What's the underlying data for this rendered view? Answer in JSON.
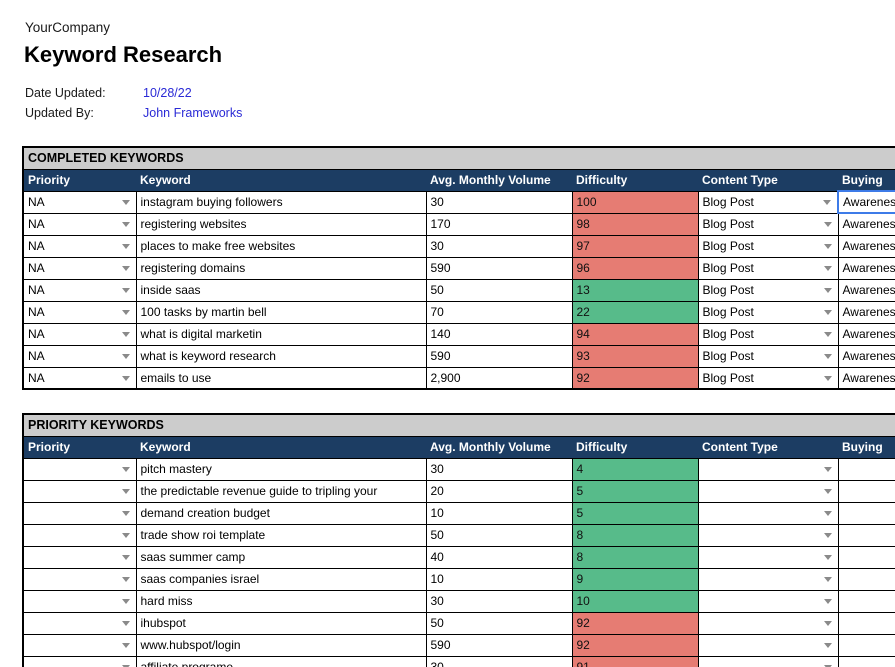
{
  "header": {
    "company": "YourCompany",
    "title": "Keyword Research",
    "date_updated_label": "Date Updated:",
    "date_updated_value": "10/28/22",
    "updated_by_label": "Updated By:",
    "updated_by_value": "John Frameworks"
  },
  "colors": {
    "header_navy": "#1c3d63",
    "section_gray": "#cccccc",
    "difficulty_red": "#e67c73",
    "difficulty_green": "#57bb8a",
    "link_blue": "#2a2ad6",
    "selection_blue": "#3d7be8"
  },
  "tables": [
    {
      "title": "COMPLETED KEYWORDS",
      "columns": [
        "Priority",
        "Keyword",
        "Avg. Monthly Volume",
        "Difficulty",
        "Content Type",
        "Buying"
      ],
      "rows": [
        {
          "priority": "NA",
          "keyword": "instagram buying followers",
          "volume": "30",
          "difficulty": "100",
          "difficulty_color": "red",
          "content_type": "Blog Post",
          "buying": "Awareness",
          "selected": true
        },
        {
          "priority": "NA",
          "keyword": "registering websites",
          "volume": "170",
          "difficulty": "98",
          "difficulty_color": "red",
          "content_type": "Blog Post",
          "buying": "Awareness"
        },
        {
          "priority": "NA",
          "keyword": "places to make free websites",
          "volume": "30",
          "difficulty": "97",
          "difficulty_color": "red",
          "content_type": "Blog Post",
          "buying": "Awareness"
        },
        {
          "priority": "NA",
          "keyword": "registering domains",
          "volume": "590",
          "difficulty": "96",
          "difficulty_color": "red",
          "content_type": "Blog Post",
          "buying": "Awareness"
        },
        {
          "priority": "NA",
          "keyword": "inside saas",
          "volume": "50",
          "difficulty": "13",
          "difficulty_color": "green",
          "content_type": "Blog Post",
          "buying": "Awareness"
        },
        {
          "priority": "NA",
          "keyword": "100 tasks by martin bell",
          "volume": "70",
          "difficulty": "22",
          "difficulty_color": "green",
          "content_type": "Blog Post",
          "buying": "Awareness"
        },
        {
          "priority": "NA",
          "keyword": "what is digital marketin",
          "volume": "140",
          "difficulty": "94",
          "difficulty_color": "red",
          "content_type": "Blog Post",
          "buying": "Awareness"
        },
        {
          "priority": "NA",
          "keyword": "what is keyword research",
          "volume": "590",
          "difficulty": "93",
          "difficulty_color": "red",
          "content_type": "Blog Post",
          "buying": "Awareness"
        },
        {
          "priority": "NA",
          "keyword": "emails to use",
          "volume": "2,900",
          "difficulty": "92",
          "difficulty_color": "red",
          "content_type": "Blog Post",
          "buying": "Awareness"
        }
      ]
    },
    {
      "title": "PRIORITY KEYWORDS",
      "columns": [
        "Priority",
        "Keyword",
        "Avg. Monthly Volume",
        "Difficulty",
        "Content Type",
        "Buying"
      ],
      "rows": [
        {
          "priority": "",
          "keyword": "pitch mastery",
          "volume": "30",
          "difficulty": "4",
          "difficulty_color": "green",
          "content_type": "",
          "buying": ""
        },
        {
          "priority": "",
          "keyword": "the predictable revenue guide to tripling your",
          "volume": "20",
          "difficulty": "5",
          "difficulty_color": "green",
          "content_type": "",
          "buying": ""
        },
        {
          "priority": "",
          "keyword": "demand creation budget",
          "volume": "10",
          "difficulty": "5",
          "difficulty_color": "green",
          "content_type": "",
          "buying": ""
        },
        {
          "priority": "",
          "keyword": "trade show roi template",
          "volume": "50",
          "difficulty": "8",
          "difficulty_color": "green",
          "content_type": "",
          "buying": ""
        },
        {
          "priority": "",
          "keyword": "saas summer camp",
          "volume": "40",
          "difficulty": "8",
          "difficulty_color": "green",
          "content_type": "",
          "buying": ""
        },
        {
          "priority": "",
          "keyword": "saas companies israel",
          "volume": "10",
          "difficulty": "9",
          "difficulty_color": "green",
          "content_type": "",
          "buying": ""
        },
        {
          "priority": "",
          "keyword": "hard miss",
          "volume": "30",
          "difficulty": "10",
          "difficulty_color": "green",
          "content_type": "",
          "buying": ""
        },
        {
          "priority": "",
          "keyword": "ihubspot",
          "volume": "50",
          "difficulty": "92",
          "difficulty_color": "red",
          "content_type": "",
          "buying": ""
        },
        {
          "priority": "",
          "keyword": "www.hubspot/login",
          "volume": "590",
          "difficulty": "92",
          "difficulty_color": "red",
          "content_type": "",
          "buying": ""
        },
        {
          "priority": "",
          "keyword": "affiliate programe",
          "volume": "30",
          "difficulty": "91",
          "difficulty_color": "red",
          "content_type": "",
          "buying": ""
        }
      ]
    }
  ]
}
